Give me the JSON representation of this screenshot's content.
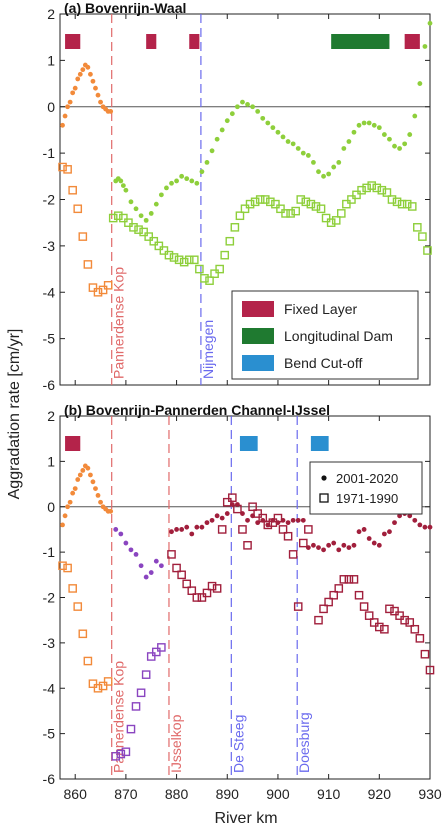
{
  "figure": {
    "xlabel": "River km",
    "ylabel": "Aggradation rate [cm/yr]",
    "xlim": [
      857,
      930
    ],
    "ylim": [
      -6,
      2
    ],
    "xticks": [
      860,
      870,
      880,
      890,
      900,
      910,
      920,
      930
    ],
    "yticks": [
      -6,
      -5,
      -4,
      -3,
      -2,
      -1,
      0,
      1,
      2
    ]
  },
  "chart_data": [
    {
      "type": "scatter",
      "panel": "a",
      "title": "(a) Bovenrijn-Waal",
      "xlim": [
        857,
        930
      ],
      "ylim": [
        -6,
        2
      ],
      "grid": false,
      "legend_position": "bottom-right",
      "legend": [
        {
          "label": "Fixed Layer",
          "color": "#b4234a"
        },
        {
          "label": "Longitudinal Dam",
          "color": "#1f7a30"
        },
        {
          "label": "Bend Cut-off",
          "color": "#2a8fd0"
        }
      ],
      "vlines": [
        {
          "x": 867.2,
          "label": "Pannerdense Kop",
          "color": "#e06a6a"
        },
        {
          "x": 884.8,
          "label": "Nijmegen",
          "color": "#6a6aee"
        }
      ],
      "interventions": [
        {
          "kind": "Fixed Layer",
          "x": [
            858,
            861
          ]
        },
        {
          "kind": "Fixed Layer",
          "x": [
            874,
            876
          ]
        },
        {
          "kind": "Fixed Layer",
          "x": [
            882.5,
            884.5
          ]
        },
        {
          "kind": "Longitudinal Dam",
          "x": [
            910.5,
            922
          ]
        },
        {
          "kind": "Fixed Layer",
          "x": [
            925,
            928
          ]
        }
      ],
      "series": [
        {
          "marker": "dot",
          "color_segments": [
            {
              "x_to": 867.2,
              "color": "#f28a3a"
            },
            {
              "x_to": 931,
              "color": "#8ecf3b"
            }
          ],
          "x": [
            857.5,
            858,
            858.5,
            859,
            859.5,
            860,
            860.5,
            861,
            861.5,
            862,
            862.5,
            863,
            863.5,
            864,
            864.5,
            865,
            865.5,
            866,
            866.5,
            867,
            868,
            868.5,
            869,
            869.5,
            870,
            871,
            872,
            873,
            874,
            875,
            876,
            877,
            878,
            879,
            880,
            881,
            882,
            883,
            884,
            885,
            886,
            887,
            888,
            889,
            890,
            891,
            892,
            893,
            894,
            895,
            896,
            897,
            898,
            899,
            900,
            901,
            902,
            903,
            904,
            905,
            906,
            907,
            908,
            909,
            910,
            911,
            912,
            913,
            914,
            915,
            916,
            917,
            918,
            919,
            920,
            921,
            922,
            923,
            924,
            925,
            926,
            927,
            928,
            929,
            930
          ],
          "y": [
            -0.4,
            -0.2,
            0,
            0.1,
            0.3,
            0.4,
            0.6,
            0.7,
            0.8,
            0.9,
            0.85,
            0.7,
            0.55,
            0.4,
            0.25,
            0.1,
            0,
            -0.05,
            -0.1,
            -0.1,
            -1.6,
            -1.55,
            -1.6,
            -1.7,
            -1.8,
            -2.05,
            -2.2,
            -2.35,
            -2.45,
            -2.3,
            -2.1,
            -1.9,
            -1.75,
            -1.65,
            -1.6,
            -1.5,
            -1.55,
            -1.6,
            -1.65,
            -1.4,
            -1.2,
            -0.95,
            -0.7,
            -0.5,
            -0.3,
            -0.15,
            0,
            0.1,
            0.05,
            0,
            -0.1,
            -0.25,
            -0.35,
            -0.45,
            -0.55,
            -0.65,
            -0.75,
            -0.8,
            -0.9,
            -1.0,
            -1.05,
            -1.2,
            -1.4,
            -1.5,
            -1.45,
            -1.3,
            -1.2,
            -0.9,
            -0.75,
            -0.55,
            -0.4,
            -0.35,
            -0.35,
            -0.4,
            -0.45,
            -0.6,
            -0.7,
            -0.85,
            -0.9,
            -0.8,
            -0.6,
            -0.2,
            0.5,
            1.3,
            1.8
          ]
        },
        {
          "marker": "square",
          "color_segments": [
            {
              "x_to": 867.2,
              "color": "#f28a3a"
            },
            {
              "x_to": 931,
              "color": "#8ecf3b"
            }
          ],
          "x": [
            857.5,
            858.5,
            859.5,
            860.5,
            861.5,
            862.5,
            863.5,
            864.5,
            865.5,
            866.5,
            867.5,
            868.5,
            869.5,
            870.5,
            871.5,
            872.5,
            873.5,
            874.5,
            875.5,
            876.5,
            877.5,
            878.5,
            879.5,
            880.5,
            881.5,
            882.5,
            883.5,
            884.5,
            885.5,
            886.5,
            887.5,
            888.5,
            889.5,
            890.5,
            891.5,
            892.5,
            893.5,
            894.5,
            895.5,
            896.5,
            897.5,
            898.5,
            899.5,
            900.5,
            901.5,
            902.5,
            903.5,
            904.5,
            905.5,
            906.5,
            907.5,
            908.5,
            909.5,
            910.5,
            911.5,
            912.5,
            913.5,
            914.5,
            915.5,
            916.5,
            917.5,
            918.5,
            919.5,
            920.5,
            921.5,
            922.5,
            923.5,
            924.5,
            925.5,
            926.5,
            927.5,
            928.5,
            929.5
          ],
          "y": [
            -1.3,
            -1.35,
            -1.8,
            -2.2,
            -2.8,
            -3.4,
            -3.9,
            -4.0,
            -3.95,
            -3.85,
            -2.4,
            -2.35,
            -2.4,
            -2.5,
            -2.6,
            -2.65,
            -2.7,
            -2.8,
            -2.9,
            -3.0,
            -3.1,
            -3.2,
            -3.25,
            -3.3,
            -3.35,
            -3.3,
            -3.3,
            -3.5,
            -3.7,
            -3.75,
            -3.6,
            -3.5,
            -3.2,
            -2.9,
            -2.6,
            -2.35,
            -2.2,
            -2.1,
            -2.05,
            -2.0,
            -2.0,
            -2.05,
            -2.1,
            -2.2,
            -2.3,
            -2.3,
            -2.25,
            -2.0,
            -2.05,
            -2.1,
            -2.15,
            -2.2,
            -2.4,
            -2.5,
            -2.45,
            -2.3,
            -2.1,
            -2.0,
            -1.9,
            -1.8,
            -1.75,
            -1.7,
            -1.75,
            -1.8,
            -1.85,
            -2.0,
            -2.05,
            -2.1,
            -2.1,
            -2.15,
            -2.6,
            -2.8,
            -3.1
          ]
        }
      ]
    },
    {
      "type": "scatter",
      "panel": "b",
      "title": "(b) Bovenrijn-Pannerden Channel-IJssel",
      "xlim": [
        857,
        930
      ],
      "ylim": [
        -6,
        2
      ],
      "grid": false,
      "legend_position": "top-right",
      "legend": [
        {
          "label": "2001-2020",
          "marker": "dot"
        },
        {
          "label": "1971-1990",
          "marker": "square"
        }
      ],
      "vlines": [
        {
          "x": 867.2,
          "label": "Pannerdense Kop",
          "color": "#e06a6a"
        },
        {
          "x": 878.5,
          "label": "IJsselkop",
          "color": "#e06a6a"
        },
        {
          "x": 890.8,
          "label": "De Steeg",
          "color": "#6a6aee"
        },
        {
          "x": 903.8,
          "label": "Doesburg",
          "color": "#6a6aee"
        }
      ],
      "interventions": [
        {
          "kind": "Fixed Layer",
          "x": [
            858,
            861
          ]
        },
        {
          "kind": "Bend Cut-off",
          "x": [
            892.5,
            896
          ]
        },
        {
          "kind": "Bend Cut-off",
          "x": [
            906.5,
            910
          ]
        }
      ],
      "series": [
        {
          "marker": "dot",
          "color_segments": [
            {
              "x_to": 867.2,
              "color": "#f28a3a"
            },
            {
              "x_to": 878.5,
              "color": "#8a45c0"
            },
            {
              "x_to": 931,
              "color": "#a11f3c"
            }
          ],
          "x": [
            857.5,
            858,
            858.5,
            859,
            859.5,
            860,
            860.5,
            861,
            861.5,
            862,
            862.5,
            863,
            863.5,
            864,
            864.5,
            865,
            865.5,
            866,
            866.5,
            867,
            868,
            869,
            870,
            871,
            872,
            873,
            874,
            875,
            876,
            877,
            879,
            880,
            881,
            882,
            883,
            884,
            885,
            886,
            887,
            888,
            889,
            890,
            891,
            892,
            893,
            894,
            895,
            896,
            897,
            898,
            899,
            900,
            901,
            902,
            903,
            904,
            905,
            906,
            907,
            908,
            909,
            910,
            911,
            912,
            913,
            914,
            915,
            916,
            917,
            918,
            919,
            920,
            921,
            922,
            923,
            924,
            925,
            926,
            927,
            928,
            929,
            930
          ],
          "y": [
            -0.4,
            -0.2,
            0,
            0.1,
            0.3,
            0.4,
            0.6,
            0.7,
            0.8,
            0.9,
            0.85,
            0.7,
            0.55,
            0.4,
            0.25,
            0.1,
            0,
            -0.05,
            -0.1,
            -0.1,
            -0.5,
            -0.6,
            -0.8,
            -0.95,
            -1.05,
            -1.3,
            -1.55,
            -1.45,
            -1.2,
            -1.3,
            -0.55,
            -0.5,
            -0.5,
            -0.45,
            -0.6,
            -0.45,
            -0.45,
            -0.35,
            -0.3,
            -0.2,
            -0.25,
            -0.15,
            0.05,
            0.05,
            -0.15,
            -0.3,
            -0.2,
            -0.35,
            -0.3,
            -0.4,
            -0.3,
            -0.35,
            -0.3,
            -0.35,
            -0.3,
            -0.3,
            -0.3,
            -0.9,
            -0.85,
            -0.9,
            -0.95,
            -0.85,
            -0.8,
            -0.95,
            -0.85,
            -0.9,
            -0.85,
            -0.55,
            -0.5,
            -0.7,
            -0.8,
            -0.85,
            -0.6,
            -0.55,
            -0.35,
            -0.2,
            -0.15,
            -0.2,
            -0.3,
            -0.4,
            -0.45,
            -0.45
          ]
        },
        {
          "marker": "square",
          "color_segments": [
            {
              "x_to": 867.2,
              "color": "#f28a3a"
            },
            {
              "x_to": 878.5,
              "color": "#8a45c0"
            },
            {
              "x_to": 931,
              "color": "#a11f3c"
            }
          ],
          "x": [
            857.5,
            858.5,
            859.5,
            860.5,
            861.5,
            862.5,
            863.5,
            864.5,
            865.5,
            866.5,
            868,
            869,
            870,
            871,
            872,
            873,
            874,
            875,
            876,
            877,
            879,
            880,
            881,
            882,
            883,
            884,
            885,
            886,
            887,
            888,
            889,
            890,
            891,
            892,
            893,
            894,
            895,
            896,
            897,
            898,
            899,
            900,
            901,
            902,
            903,
            904,
            905,
            906,
            908,
            909,
            910,
            911,
            912,
            913,
            914,
            915,
            916,
            917,
            918,
            919,
            920,
            921,
            922,
            923,
            924,
            925,
            926,
            927,
            928,
            929,
            930
          ],
          "y": [
            -1.3,
            -1.35,
            -1.8,
            -2.2,
            -2.8,
            -3.4,
            -3.9,
            -4.0,
            -3.95,
            -3.85,
            -5.5,
            -5.45,
            -5.4,
            -4.9,
            -4.4,
            -4.1,
            -3.7,
            -3.3,
            -3.2,
            -3.1,
            -1.05,
            -1.35,
            -1.5,
            -1.7,
            -1.85,
            -2.0,
            -2.0,
            -1.9,
            -1.75,
            -1.8,
            -0.5,
            0.1,
            0.2,
            -0.05,
            -0.5,
            -0.85,
            0.0,
            -0.15,
            -0.25,
            -0.4,
            -0.35,
            -0.25,
            -0.5,
            -0.65,
            -1.05,
            -2.2,
            -0.8,
            -0.5,
            -2.5,
            -2.25,
            -2.1,
            -1.95,
            -1.8,
            -1.6,
            -1.6,
            -1.6,
            -1.95,
            -2.2,
            -2.4,
            -2.55,
            -2.65,
            -2.7,
            -2.25,
            -2.3,
            -2.4,
            -2.5,
            -2.55,
            -2.7,
            -2.9,
            -3.25,
            -3.6
          ]
        }
      ]
    }
  ]
}
